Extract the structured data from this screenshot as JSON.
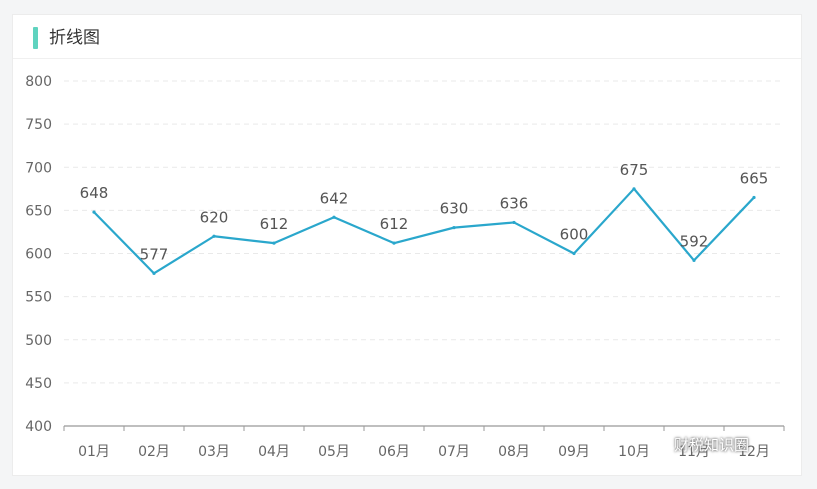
{
  "panel": {
    "title": "折线图"
  },
  "colors": {
    "accent": "#5fd3bf",
    "line": "#2aa7cc",
    "grid": "#e9e9e9",
    "axis": "#999999",
    "tick_text": "#666666",
    "label_text": "#555555"
  },
  "chart_data": {
    "type": "line",
    "categories": [
      "01月",
      "02月",
      "03月",
      "04月",
      "05月",
      "06月",
      "07月",
      "08月",
      "09月",
      "10月",
      "11月",
      "12月"
    ],
    "series": [
      {
        "values": [
          648,
          577,
          620,
          612,
          642,
          612,
          630,
          636,
          600,
          675,
          592,
          665
        ]
      }
    ],
    "yticks": [
      400,
      450,
      500,
      550,
      600,
      650,
      700,
      750,
      800
    ],
    "ylim": [
      400,
      800
    ],
    "grid": true,
    "grid_style": "dashed",
    "data_labels": true
  },
  "watermark": {
    "text": "财税知识圈",
    "icon": "wechat-icon"
  }
}
